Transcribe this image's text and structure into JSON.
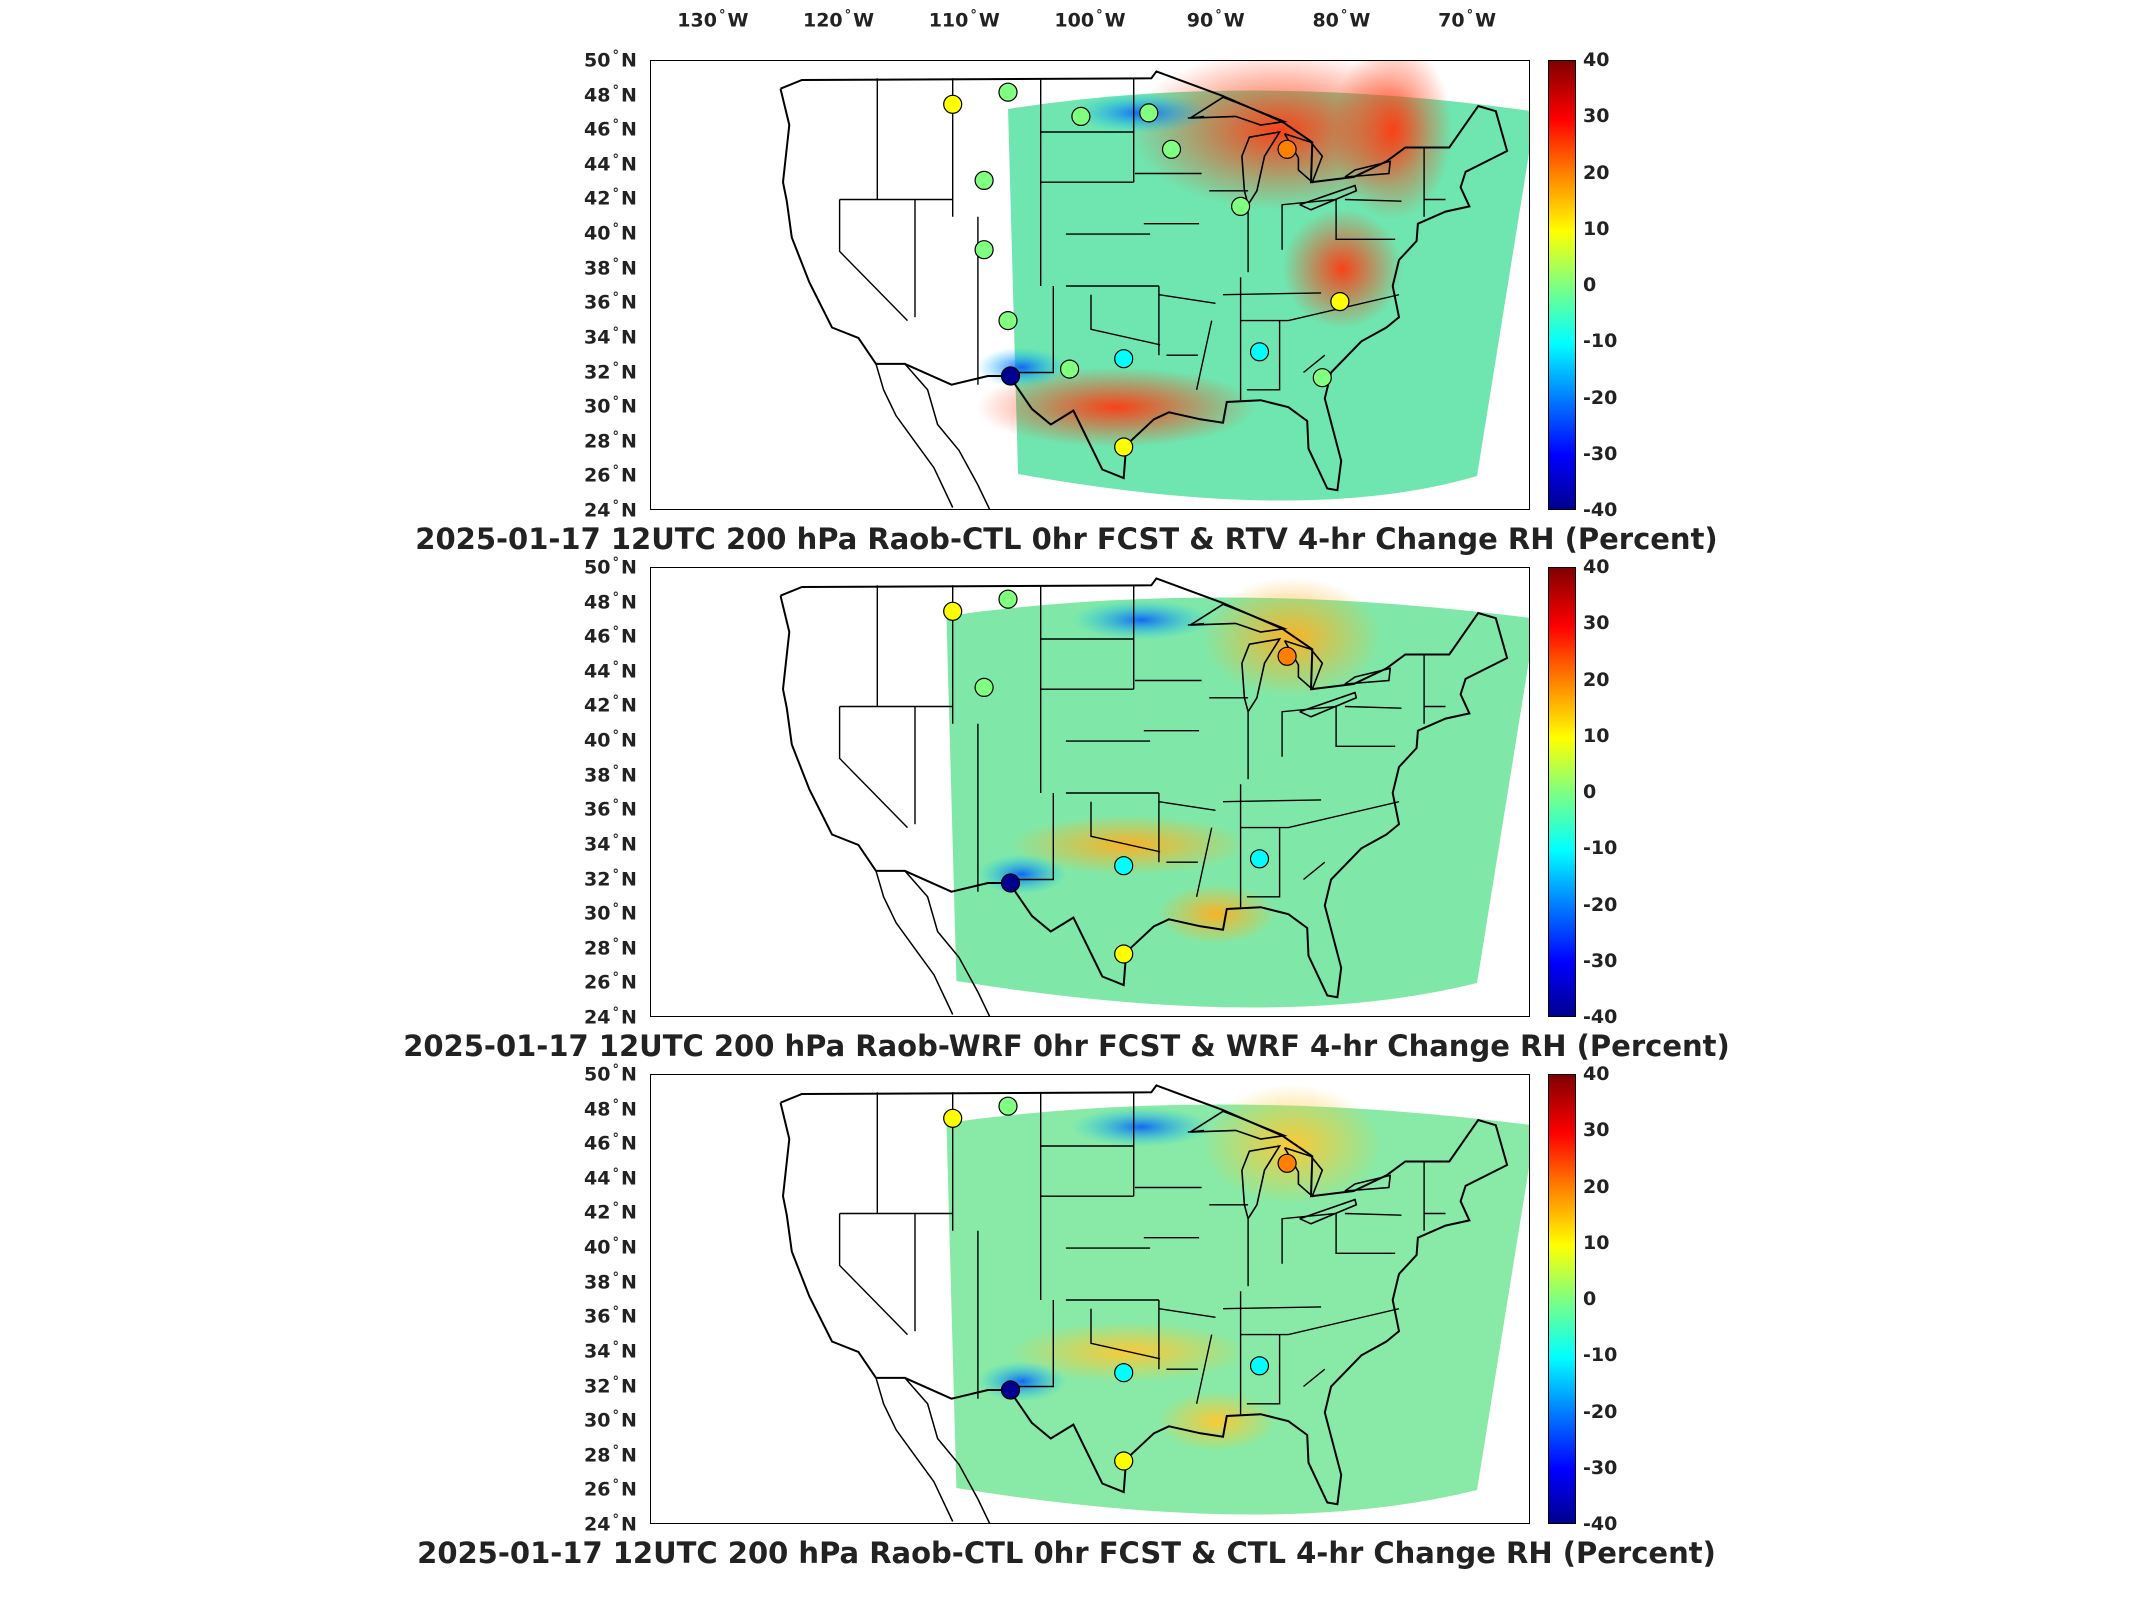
{
  "longitude_labels": [
    "130",
    "120",
    "110",
    "100",
    "90",
    "80",
    "70"
  ],
  "longitude_suffix": "W",
  "latitude_labels": [
    "50",
    "48",
    "46",
    "44",
    "42",
    "40",
    "38",
    "36",
    "34",
    "32",
    "30",
    "28",
    "26",
    "24"
  ],
  "latitude_suffix": "N",
  "degree_symbol": "°",
  "colorbar_ticks": [
    "40",
    "30",
    "20",
    "10",
    "0",
    "-10",
    "-20",
    "-30",
    "-40"
  ],
  "colorbar_range": [
    -40,
    40
  ],
  "colormap": [
    "#00008f",
    "#0000ff",
    "#0080ff",
    "#00ffff",
    "#80ff80",
    "#ffff00",
    "#ff8000",
    "#ff0000",
    "#800000"
  ],
  "panels": [
    {
      "caption": "2025-01-17 12UTC 200 hPa Raob-CTL 0hr FCST & RTV 4-hr Change RH (Percent)",
      "field_color": "#6fe6b0",
      "warm_region_color": "#ff3a10",
      "raob_sites": [
        {
          "lon": -111.0,
          "lat": 47.5,
          "value": 12
        },
        {
          "lon": -106.6,
          "lat": 48.2,
          "value": -2
        },
        {
          "lon": -108.5,
          "lat": 43.1,
          "value": -3
        },
        {
          "lon": -108.5,
          "lat": 39.1,
          "value": -2
        },
        {
          "lon": -106.6,
          "lat": 35.0,
          "value": -3
        },
        {
          "lon": -106.4,
          "lat": 31.8,
          "value": -38
        },
        {
          "lon": -101.7,
          "lat": 32.2,
          "value": 1
        },
        {
          "lon": -97.4,
          "lat": 32.8,
          "value": -12
        },
        {
          "lon": -97.4,
          "lat": 27.7,
          "value": 14
        },
        {
          "lon": -95.4,
          "lat": 47.0,
          "value": -2
        },
        {
          "lon": -100.8,
          "lat": 46.8,
          "value": -2
        },
        {
          "lon": -93.6,
          "lat": 44.9,
          "value": 0
        },
        {
          "lon": -84.4,
          "lat": 44.9,
          "value": 15
        },
        {
          "lon": -88.1,
          "lat": 41.6,
          "value": -3
        },
        {
          "lon": -80.2,
          "lat": 36.1,
          "value": 14
        },
        {
          "lon": -81.6,
          "lat": 31.7,
          "value": -4
        },
        {
          "lon": -86.6,
          "lat": 33.2,
          "value": -8
        }
      ]
    },
    {
      "caption": "2025-01-17 12UTC 200 hPa Raob-WRF 0hr FCST & WRF 4-hr Change RH (Percent)",
      "field_color": "#7fe8a8",
      "warm_region_color": "#ffb020",
      "raob_sites": [
        {
          "lon": -111.0,
          "lat": 47.5,
          "value": 12
        },
        {
          "lon": -106.6,
          "lat": 48.2,
          "value": -2
        },
        {
          "lon": -108.5,
          "lat": 43.1,
          "value": -3
        },
        {
          "lon": -106.4,
          "lat": 31.8,
          "value": -38
        },
        {
          "lon": -97.4,
          "lat": 32.8,
          "value": -12
        },
        {
          "lon": -97.4,
          "lat": 27.7,
          "value": 12
        },
        {
          "lon": -84.4,
          "lat": 44.9,
          "value": 15
        },
        {
          "lon": -86.6,
          "lat": 33.2,
          "value": -8
        }
      ]
    },
    {
      "caption": "2025-01-17 12UTC 200 hPa Raob-CTL 0hr FCST & CTL 4-hr Change RH (Percent)",
      "field_color": "#88eaa6",
      "warm_region_color": "#ffc830",
      "raob_sites": [
        {
          "lon": -111.0,
          "lat": 47.5,
          "value": 12
        },
        {
          "lon": -106.6,
          "lat": 48.2,
          "value": -2
        },
        {
          "lon": -106.4,
          "lat": 31.8,
          "value": -38
        },
        {
          "lon": -97.4,
          "lat": 32.8,
          "value": -12
        },
        {
          "lon": -97.4,
          "lat": 27.7,
          "value": 12
        },
        {
          "lon": -84.4,
          "lat": 44.9,
          "value": 15
        },
        {
          "lon": -86.6,
          "lat": 33.2,
          "value": -8
        }
      ]
    }
  ]
}
